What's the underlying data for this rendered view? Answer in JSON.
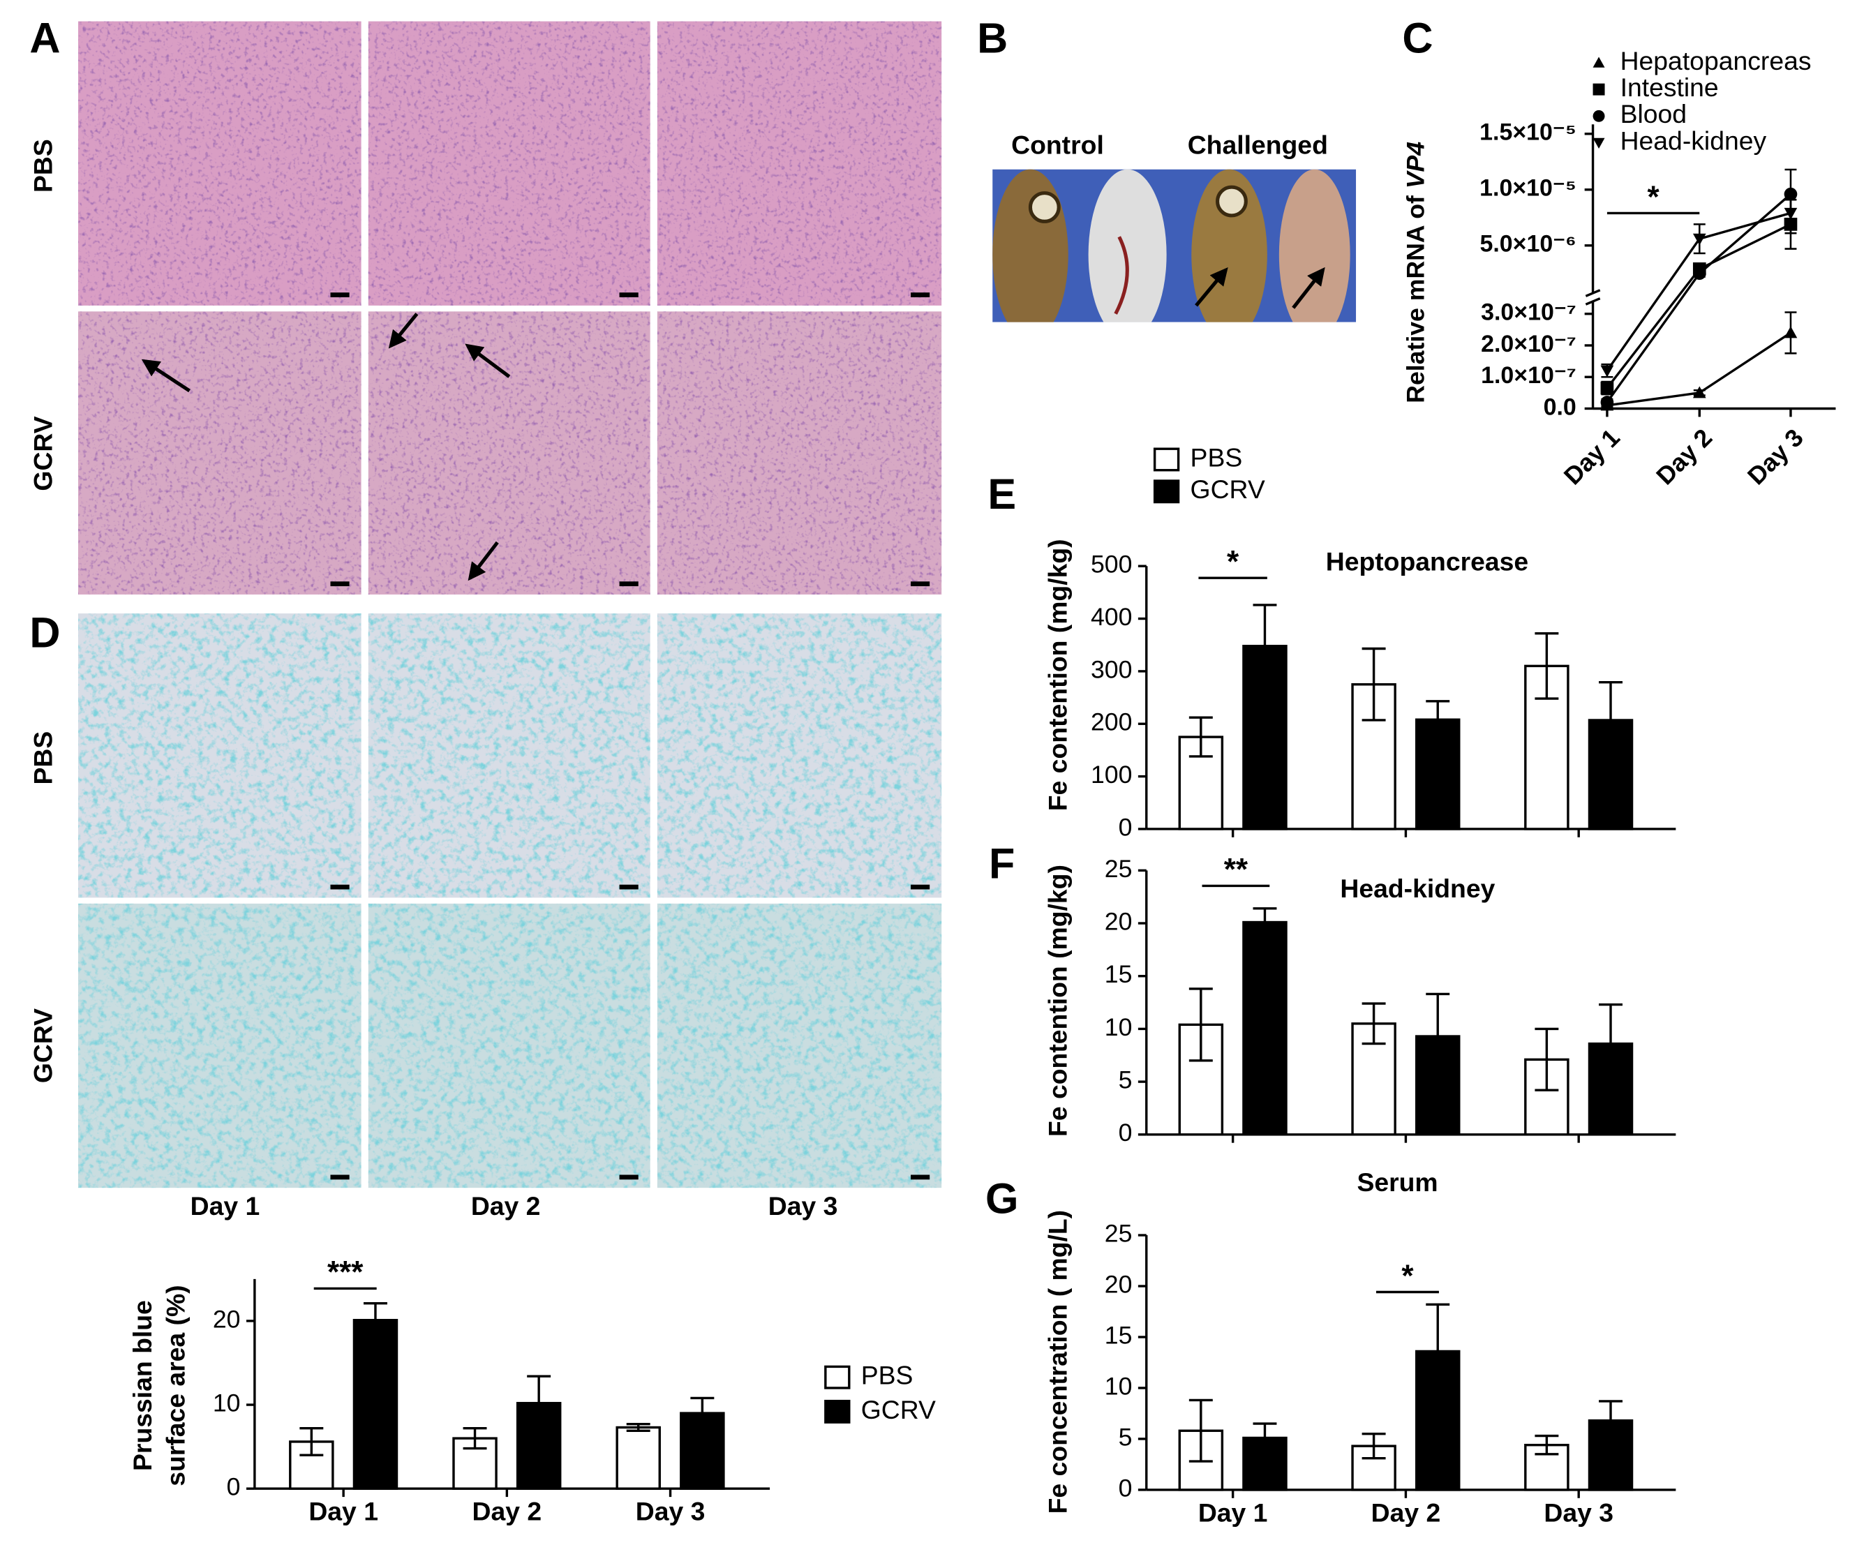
{
  "panel_labels": [
    "A",
    "B",
    "C",
    "D",
    "E",
    "F",
    "G"
  ],
  "histology": {
    "A_rows": [
      "PBS",
      "GCRV"
    ],
    "D_rows": [
      "PBS",
      "GCRV"
    ],
    "columns": [
      "Day 1",
      "Day 2",
      "Day 3"
    ]
  },
  "photo": {
    "labels": [
      "Control",
      "Challenged"
    ]
  },
  "chart_data": [
    {
      "type": "line",
      "y_label": [
        "Relative mRNA of ",
        "VP4"
      ],
      "categories": [
        "Day 1",
        "Day 2",
        "Day 3"
      ],
      "y_segments": [
        {
          "ylim": [
            0,
            3.3e-07
          ],
          "yticks": [
            {
              "value": 0,
              "label": "0.0"
            },
            {
              "value": 1e-07,
              "label": "1.0×10⁻⁷"
            },
            {
              "value": 2e-07,
              "label": "2.0×10⁻⁷"
            },
            {
              "value": 3e-07,
              "label": "3.0×10⁻⁷"
            }
          ]
        },
        {
          "ylim": [
            1e-06,
            1.5e-05
          ],
          "yticks": [
            {
              "value": 5e-06,
              "label": "5.0×10⁻⁶"
            },
            {
              "value": 1e-05,
              "label": "1.0×10⁻⁵"
            },
            {
              "value": 1.5e-05,
              "label": "1.5×10⁻⁵"
            }
          ]
        }
      ],
      "series": [
        {
          "name": "Hepatopancreas",
          "color": "#000000",
          "marker": "^",
          "values": [
            1e-08,
            5e-08,
            2.4e-07
          ],
          "errors": [
            5e-09,
            8e-09,
            6.5e-08
          ]
        },
        {
          "name": "Intestine",
          "color": "#000000",
          "marker": "s",
          "values": [
            6.5e-08,
            2.9e-06,
            6.9e-06
          ],
          "errors": [
            2e-08,
            4e-07,
            2.2e-06
          ]
        },
        {
          "name": "Blood",
          "color": "#000000",
          "marker": "o",
          "values": [
            2e-08,
            2.5e-06,
            9.6e-06
          ],
          "errors": [
            1e-08,
            3e-07,
            2.2e-06
          ]
        },
        {
          "name": "Head-kidney",
          "color": "#000000",
          "marker": "v",
          "values": [
            1.2e-07,
            5.6e-06,
            7.9e-06
          ],
          "errors": [
            2e-08,
            1.3e-06,
            1.8e-06
          ]
        }
      ],
      "annotations": [
        "*"
      ]
    },
    {
      "type": "bar",
      "y_label": [
        "Prussian blue",
        "surface area (%)"
      ],
      "categories": [
        "Day 1",
        "Day 2",
        "Day 3"
      ],
      "ylim": [
        0,
        25
      ],
      "yticks": [
        0,
        10,
        20
      ],
      "series": [
        {
          "name": "PBS",
          "color": "#ffffff",
          "values": [
            5.6,
            6.0,
            7.3
          ],
          "errors": [
            1.6,
            1.2,
            0.4
          ]
        },
        {
          "name": "GCRV",
          "color": "#000000",
          "values": [
            20.1,
            10.2,
            9.0
          ],
          "errors": [
            2.0,
            3.2,
            1.8
          ]
        }
      ],
      "annotations": [
        "***"
      ]
    },
    {
      "type": "bar",
      "title": "Heptopancrease",
      "y_label": [
        "Fe contention (mg/kg)"
      ],
      "ylim": [
        0,
        500
      ],
      "yticks": [
        0,
        100,
        200,
        300,
        400,
        500
      ],
      "series": [
        {
          "name": "PBS",
          "color": "#ffffff",
          "values": [
            175,
            275,
            310
          ],
          "errors": [
            37,
            68,
            62
          ]
        },
        {
          "name": "GCRV",
          "color": "#000000",
          "values": [
            348,
            208,
            207
          ],
          "errors": [
            78,
            35,
            72
          ]
        }
      ],
      "annotations": [
        "*"
      ]
    },
    {
      "type": "bar",
      "title": "Head-kidney",
      "y_label": [
        "Fe contention (mg/kg)"
      ],
      "ylim": [
        0,
        25
      ],
      "yticks": [
        0,
        5,
        10,
        15,
        20,
        25
      ],
      "series": [
        {
          "color": "#ffffff",
          "values": [
            10.4,
            10.5,
            7.1
          ],
          "errors": [
            3.4,
            1.9,
            2.9
          ]
        },
        {
          "color": "#000000",
          "values": [
            20.1,
            9.3,
            8.6
          ],
          "errors": [
            1.3,
            4.0,
            3.7
          ]
        }
      ],
      "annotations": [
        "**"
      ]
    },
    {
      "type": "bar",
      "title": "Serum",
      "y_label": [
        "Fe concentration ( mg/L)"
      ],
      "categories": [
        "Day 1",
        "Day 2",
        "Day 3"
      ],
      "ylim": [
        0,
        25
      ],
      "yticks": [
        0,
        5,
        10,
        15,
        20,
        25
      ],
      "series": [
        {
          "color": "#ffffff",
          "values": [
            5.8,
            4.3,
            4.4
          ],
          "errors": [
            3.0,
            1.2,
            0.9
          ]
        },
        {
          "color": "#000000",
          "values": [
            5.1,
            13.6,
            6.8
          ],
          "errors": [
            1.4,
            4.6,
            1.9
          ]
        }
      ],
      "annotations": [
        "*"
      ]
    }
  ]
}
